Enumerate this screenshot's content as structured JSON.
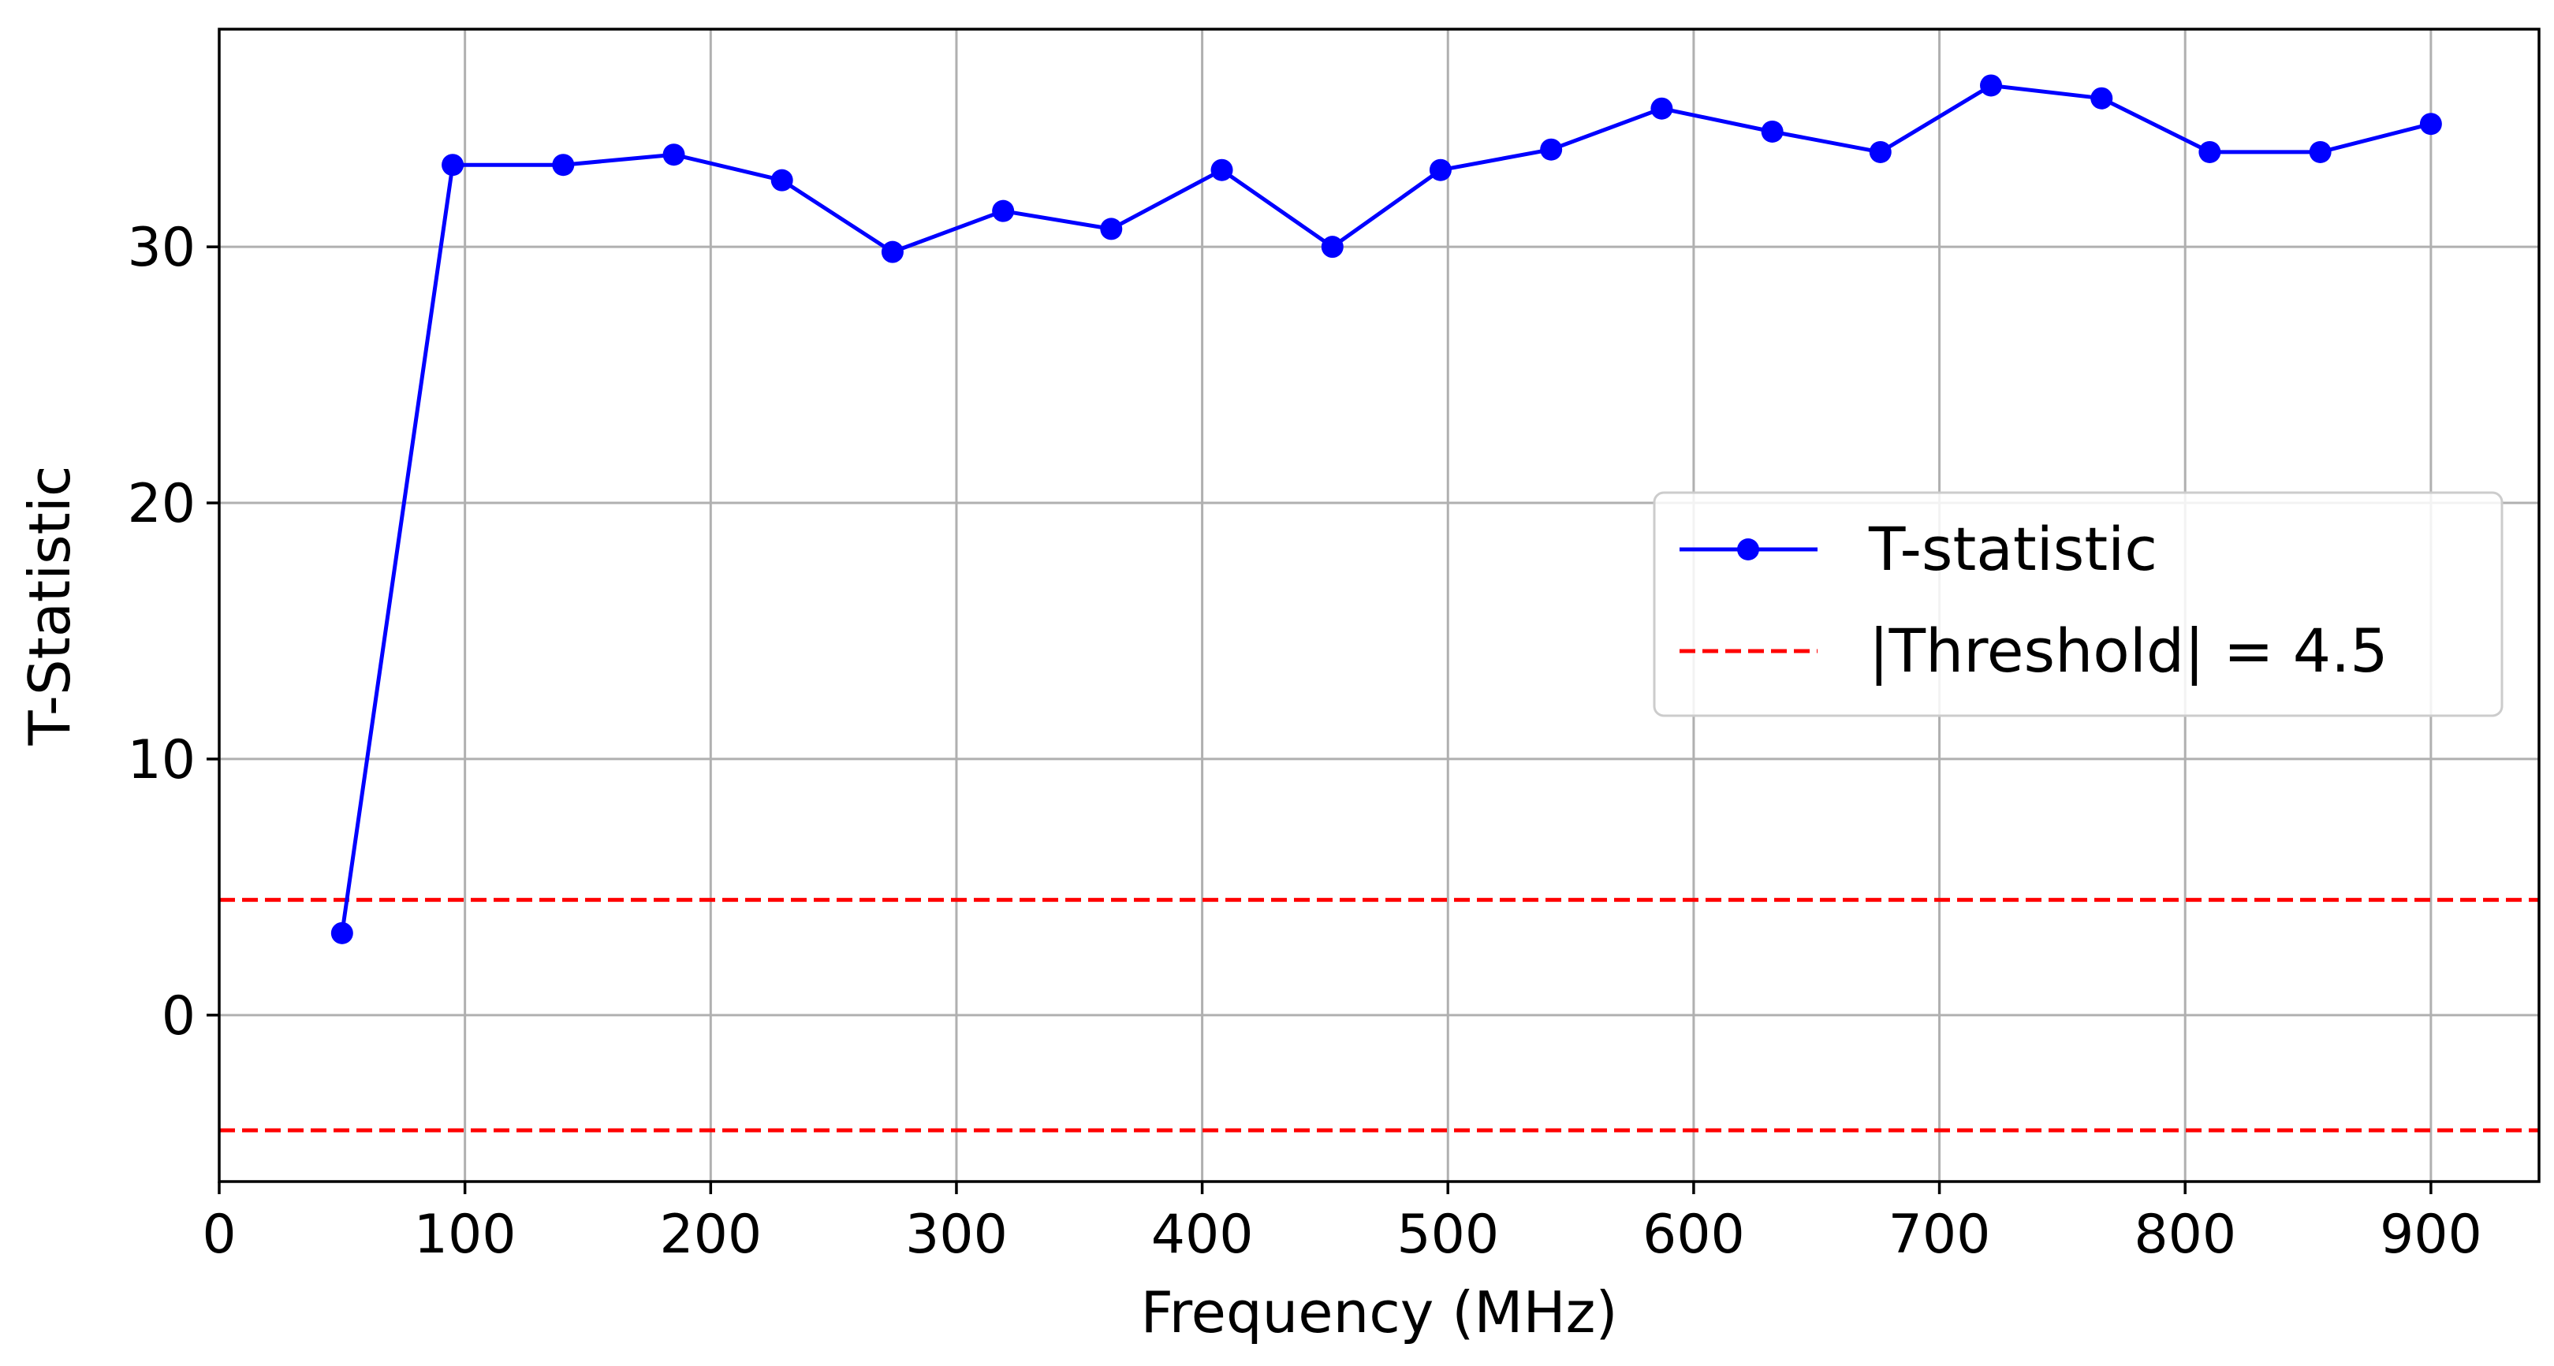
{
  "chart_data": {
    "type": "line",
    "title": "",
    "xlabel": "Frequency (MHz)",
    "ylabel": "T-Statistic",
    "xlim": [
      0,
      944
    ],
    "ylim": [
      -6.5,
      38.5
    ],
    "xticks": [
      0,
      100,
      200,
      300,
      400,
      500,
      600,
      700,
      800,
      900
    ],
    "yticks": [
      0,
      10,
      20,
      30
    ],
    "grid": true,
    "legend_position": "center-right",
    "series": [
      {
        "name": "T-statistic",
        "color": "#0000ff",
        "style": "solid-line-with-circle-markers",
        "x": [
          50,
          95,
          140,
          185,
          229,
          274,
          319,
          363,
          408,
          453,
          497,
          542,
          587,
          632,
          676,
          721,
          766,
          810,
          855,
          900
        ],
        "y": [
          3.2,
          33.2,
          33.2,
          33.6,
          32.6,
          29.8,
          31.4,
          30.7,
          33.0,
          30.0,
          33.0,
          33.8,
          35.4,
          34.5,
          33.7,
          36.3,
          35.8,
          33.7,
          33.7,
          34.8
        ]
      }
    ],
    "reference_lines": [
      {
        "name": "|Threshold| = 4.5",
        "y": 4.5,
        "color": "#ff0000",
        "style": "dashed",
        "in_legend": true
      },
      {
        "name": "",
        "y": -4.5,
        "color": "#ff0000",
        "style": "dashed",
        "in_legend": false
      }
    ]
  }
}
